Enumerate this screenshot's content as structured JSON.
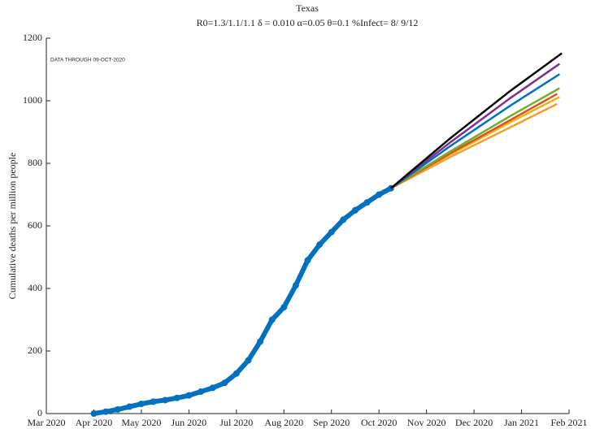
{
  "chart_data": {
    "type": "line",
    "title": "Texas",
    "subtitle": "R0=1.3/1.1/1.1  δ = 0.010  α=0.05  θ=0.1  %Infect= 8/ 9/12",
    "annotation": "DATA THROUGH 09-OCT-2020",
    "ylabel": "Cumulative deaths per million people",
    "xlim": [
      0,
      11
    ],
    "xticks": [
      {
        "value": 0,
        "label": "Mar 2020"
      },
      {
        "value": 1,
        "label": "Apr 2020"
      },
      {
        "value": 2,
        "label": "May 2020"
      },
      {
        "value": 3,
        "label": "Jun 2020"
      },
      {
        "value": 4,
        "label": "Jul 2020"
      },
      {
        "value": 5,
        "label": "Aug 2020"
      },
      {
        "value": 6,
        "label": "Sep 2020"
      },
      {
        "value": 7,
        "label": "Oct 2020"
      },
      {
        "value": 8,
        "label": "Nov 2020"
      },
      {
        "value": 9,
        "label": "Dec 2020"
      },
      {
        "value": 10,
        "label": "Jan 2021"
      },
      {
        "value": 11,
        "label": "Feb 2021"
      }
    ],
    "ylim": [
      0,
      1200
    ],
    "yticks": [
      0,
      200,
      400,
      600,
      800,
      1000,
      1200
    ],
    "grid": false,
    "series": [
      {
        "color": "#0072bd",
        "marker": "o",
        "x": [
          1.0,
          1.25,
          1.5,
          1.75,
          2.0,
          2.25,
          2.5,
          2.75,
          3.0,
          3.25,
          3.5,
          3.75,
          4.0,
          4.25,
          4.5,
          4.75,
          5.0,
          5.25,
          5.5,
          5.75,
          6.0,
          6.25,
          6.5,
          6.75,
          7.0,
          7.25
        ],
        "values": [
          0,
          6,
          13,
          22,
          31,
          38,
          43,
          50,
          58,
          70,
          82,
          98,
          128,
          170,
          230,
          300,
          340,
          410,
          490,
          540,
          580,
          620,
          650,
          675,
          700,
          720
        ]
      },
      {
        "color": "#f0a030",
        "x": [
          7.25,
          8.5,
          9.75,
          10.75
        ],
        "values": [
          720,
          820,
          914,
          990
        ]
      },
      {
        "color": "#edb120",
        "x": [
          7.25,
          8.5,
          9.75,
          10.8
        ],
        "values": [
          720,
          828,
          930,
          1012
        ]
      },
      {
        "color": "#d95319",
        "x": [
          7.25,
          8.5,
          9.75,
          10.75
        ],
        "values": [
          720,
          832,
          937,
          1022
        ]
      },
      {
        "color": "#77ac30",
        "x": [
          7.25,
          8.5,
          9.75,
          10.8
        ],
        "values": [
          720,
          838,
          950,
          1040
        ]
      },
      {
        "color": "#0072bd",
        "x": [
          7.25,
          8.5,
          9.75,
          10.8
        ],
        "values": [
          720,
          855,
          983,
          1085
        ]
      },
      {
        "color": "#7e2f8e",
        "x": [
          7.25,
          8.5,
          9.75,
          10.8
        ],
        "values": [
          720,
          867,
          1007,
          1118
        ]
      },
      {
        "color": "#000000",
        "x": [
          7.25,
          8.5,
          9.75,
          10.85
        ],
        "values": [
          720,
          880,
          1030,
          1152
        ]
      }
    ]
  }
}
